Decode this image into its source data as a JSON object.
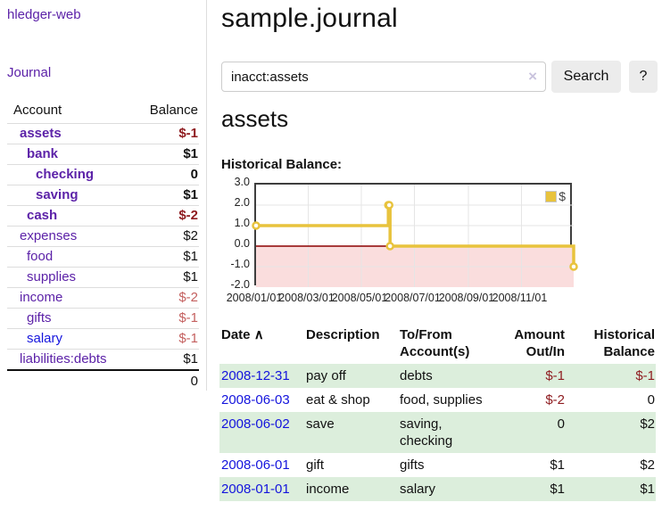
{
  "colors": {
    "link_purple": "#5c22a8",
    "link_blue": "#1414dd",
    "negative_strong": "#8f1d21",
    "negative_soft": "#c4605f",
    "row_stripe_green": "#dceedc",
    "chart_line_gold": "#e8c33d",
    "chart_negative_fill": "#fadddd",
    "chart_zero_line": "#8b0000",
    "chart_grid": "#e5e5e5",
    "button_bg": "#ececec"
  },
  "app": {
    "title": "hledger-web",
    "nav_journal": "Journal"
  },
  "sidebar": {
    "header": {
      "account": "Account",
      "balance": "Balance"
    },
    "accounts": [
      {
        "name": "assets",
        "balance": "$-1",
        "depth": 1,
        "emphasis": true,
        "tone": "neg-strong",
        "link": "purple"
      },
      {
        "name": "bank",
        "balance": "$1",
        "depth": 2,
        "emphasis": true,
        "tone": "",
        "link": "purple"
      },
      {
        "name": "checking",
        "balance": "0",
        "depth": 3,
        "emphasis": true,
        "tone": "",
        "link": "purple"
      },
      {
        "name": "saving",
        "balance": "$1",
        "depth": 3,
        "emphasis": true,
        "tone": "",
        "link": "purple"
      },
      {
        "name": "cash",
        "balance": "$-2",
        "depth": 2,
        "emphasis": true,
        "tone": "neg-strong",
        "link": "purple"
      },
      {
        "name": "expenses",
        "balance": "$2",
        "depth": 1,
        "emphasis": false,
        "tone": "",
        "link": "purple"
      },
      {
        "name": "food",
        "balance": "$1",
        "depth": 2,
        "emphasis": false,
        "tone": "",
        "link": "purple"
      },
      {
        "name": "supplies",
        "balance": "$1",
        "depth": 2,
        "emphasis": false,
        "tone": "",
        "link": "purple"
      },
      {
        "name": "income",
        "balance": "$-2",
        "depth": 1,
        "emphasis": false,
        "tone": "neg-soft",
        "link": "purple"
      },
      {
        "name": "gifts",
        "balance": "$-1",
        "depth": 2,
        "emphasis": false,
        "tone": "neg-soft",
        "link": "purple"
      },
      {
        "name": "salary",
        "balance": "$-1",
        "depth": 2,
        "emphasis": false,
        "tone": "neg-soft",
        "link": "blue"
      },
      {
        "name": "liabilities:debts",
        "balance": "$1",
        "depth": 1,
        "emphasis": false,
        "tone": "",
        "link": "purple"
      }
    ],
    "total": "0"
  },
  "main": {
    "title": "sample.journal",
    "search": {
      "value": "inacct:assets",
      "clear_icon": "×",
      "button": "Search",
      "help": "?"
    },
    "account_heading": "assets",
    "chart_heading": "Historical Balance:"
  },
  "chart_data": {
    "type": "line",
    "step": true,
    "title": "Historical Balance:",
    "legend": "$",
    "legend_position": "top-right",
    "grid": true,
    "ylim": [
      -2,
      3
    ],
    "yticks": [
      "3.0",
      "2.0",
      "1.0",
      "0.0",
      "-1.0",
      "-2.0"
    ],
    "xticks": [
      "2008/01/01",
      "2008/03/01",
      "2008/05/01",
      "2008/07/01",
      "2008/09/01",
      "2008/11/01"
    ],
    "xrange": [
      "2008-01-01",
      "2008-12-31"
    ],
    "series": [
      {
        "name": "$",
        "x": [
          "2008-01-01",
          "2008-06-01",
          "2008-06-02",
          "2008-06-03",
          "2008-12-31"
        ],
        "values": [
          1,
          2,
          2,
          0,
          -1
        ]
      }
    ]
  },
  "register": {
    "headers": {
      "date": "Date",
      "sort_indicator": "∧",
      "description": "Description",
      "accounts": "To/From Account(s)",
      "amount": "Amount Out/In",
      "balance": "Historical Balance"
    },
    "rows": [
      {
        "date": "2008-12-31",
        "description": "pay off",
        "accounts": "debts",
        "amount": "$-1",
        "amount_tone": "neg-strong",
        "balance": "$-1",
        "balance_tone": "neg-strong"
      },
      {
        "date": "2008-06-03",
        "description": "eat & shop",
        "accounts": "food, supplies",
        "amount": "$-2",
        "amount_tone": "neg-strong",
        "balance": "0",
        "balance_tone": ""
      },
      {
        "date": "2008-06-02",
        "description": "save",
        "accounts": "saving, checking",
        "amount": "0",
        "amount_tone": "",
        "balance": "$2",
        "balance_tone": ""
      },
      {
        "date": "2008-06-01",
        "description": "gift",
        "accounts": "gifts",
        "amount": "$1",
        "amount_tone": "",
        "balance": "$2",
        "balance_tone": ""
      },
      {
        "date": "2008-01-01",
        "description": "income",
        "accounts": "salary",
        "amount": "$1",
        "amount_tone": "",
        "balance": "$1",
        "balance_tone": ""
      }
    ]
  }
}
